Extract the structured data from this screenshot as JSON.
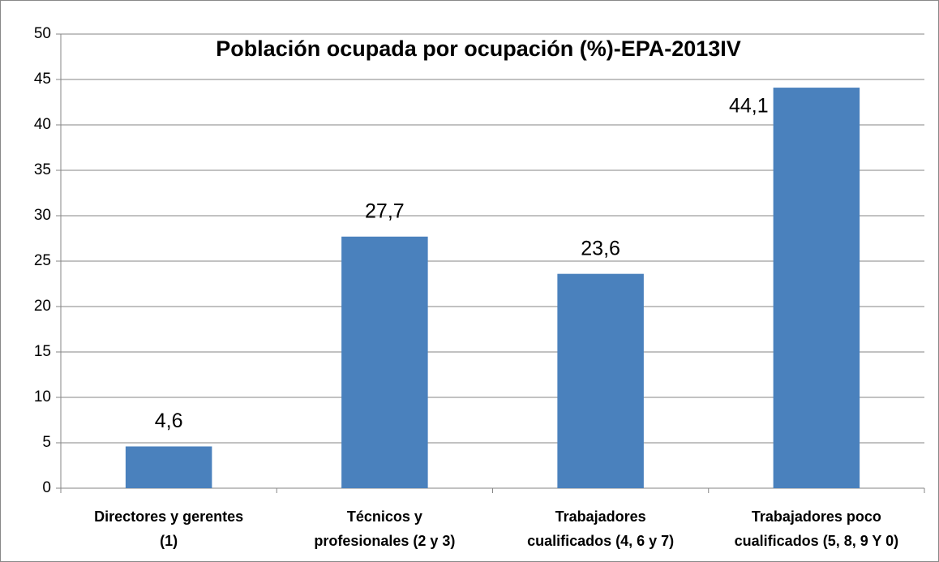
{
  "chart_data": {
    "type": "bar",
    "title": "Población ocupada por ocupación (%)-EPA-2013IV",
    "categories": [
      "Directores y gerentes\n(1)",
      "Técnicos y\nprofesionales (2 y 3)",
      "Trabajadores\ncualificados (4, 6 y 7)",
      "Trabajadores poco\ncualificados (5, 8, 9 Y 0)"
    ],
    "values": [
      4.6,
      27.7,
      23.6,
      44.1
    ],
    "value_labels": [
      "4,6",
      "27,7",
      "23,6",
      "44,1"
    ],
    "color": "#4a81bd",
    "ylim": [
      0,
      50
    ],
    "yticks": [
      0,
      5,
      10,
      15,
      20,
      25,
      30,
      35,
      40,
      45,
      50
    ],
    "grid": true
  }
}
